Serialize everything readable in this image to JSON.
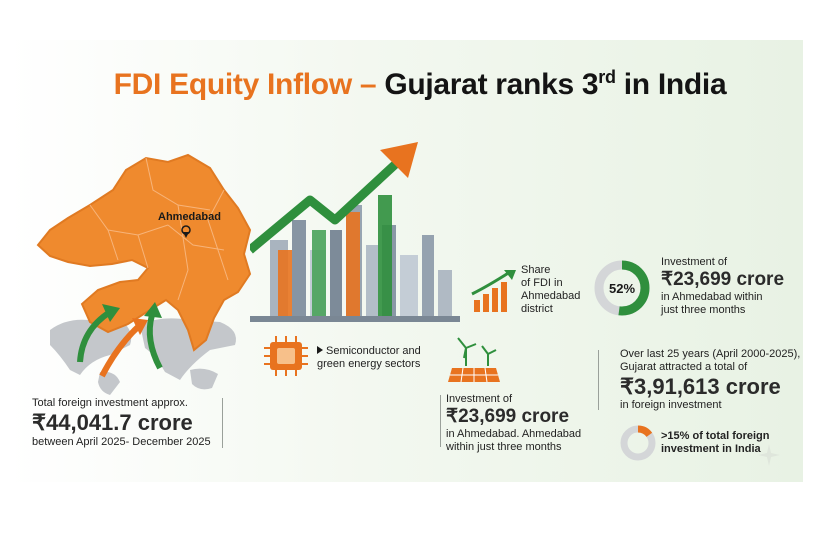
{
  "title": {
    "part_orange": "FDI Equity Inflow –",
    "part_black": " Gujarat ranks 3",
    "superscript": "rd",
    "suffix": " in India"
  },
  "map": {
    "city_label": "Ahmedabad",
    "colors": {
      "state": "#ef8a2e",
      "arrow_green": "#2f8f3d",
      "arrow_orange": "#e8731f",
      "world": "#b9bcc0"
    }
  },
  "total_investment": {
    "label": "Total foreign investment approx.",
    "value": "₹44,041.7 crore",
    "period": "between April 2025- December 2025"
  },
  "sectors": {
    "label_line1": "Semiconductor and",
    "label_line2": "green energy sectors",
    "icon": "chip-icon"
  },
  "share": {
    "line1": "Share",
    "line2": "of FDI in",
    "line3": "Ahmedabad",
    "line4": "district",
    "icon": "bar-growth-icon"
  },
  "donut52": {
    "percent_label": "52%",
    "percent": 52,
    "line1": "Investment of",
    "value": "₹23,699 crore",
    "line3": "in Ahmedabad within",
    "line4": "just three months"
  },
  "green_investment": {
    "line1": "Investment of",
    "value": "₹23,699 crore",
    "line3": "in Ahmedabad. Ahmedabad",
    "line4": "within just three months",
    "icon": "solar-wind-icon"
  },
  "gujarat_25yrs": {
    "line1": "Over last 25 years (April 2000-2025),",
    "line2": "Gujarat attracted a total of",
    "value": "₹3,91,613 crore",
    "line4": "in foreign investment"
  },
  "share_india": {
    "percent": 15,
    "line1": ">15% of total foreign",
    "line2": "investment in India"
  }
}
